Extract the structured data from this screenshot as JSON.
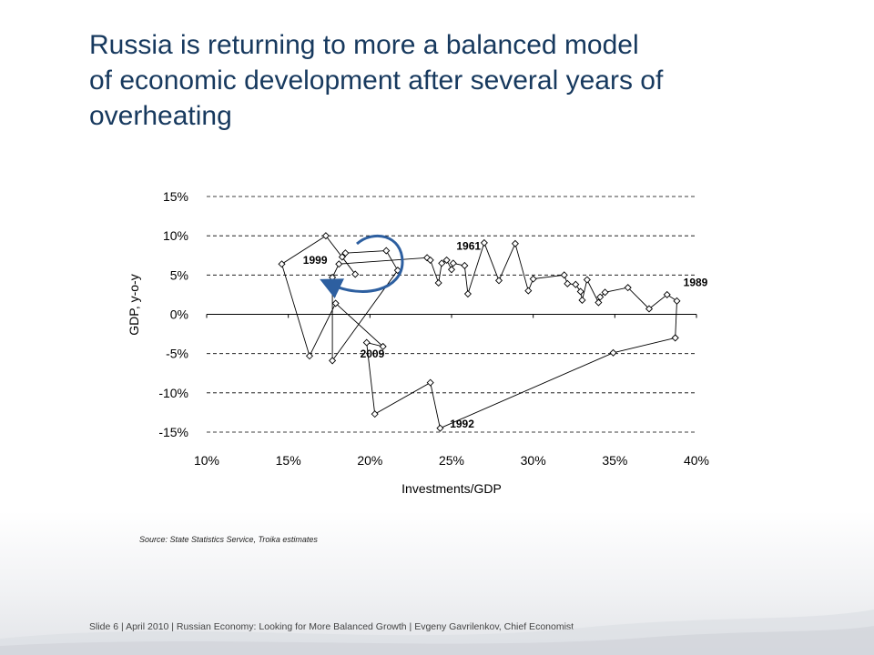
{
  "slide": {
    "title_lines": [
      "Russia is returning to more a balanced model",
      "of economic development after several years of",
      "overheating"
    ],
    "source": "Source: State Statistics Service, Troika estimates",
    "footer": "Slide 6  | April 2010 | Russian Economy: Looking for More Balanced Growth | Evgeny Gavrilenkov, Chief Economist"
  },
  "chart_data": {
    "type": "scatter",
    "xlabel": "Investments/GDP",
    "ylabel": "GDP, y-o-y",
    "xlim": [
      10,
      40
    ],
    "ylim": [
      -15,
      15
    ],
    "x_ticks": [
      "10%",
      "15%",
      "20%",
      "25%",
      "30%",
      "35%",
      "40%"
    ],
    "y_ticks": [
      "15%",
      "10%",
      "5%",
      "0%",
      "-5%",
      "-10%",
      "-15%"
    ],
    "grid": "horizontal-dashed",
    "line_color": "#000000",
    "arrow_color": "#2d5fa0",
    "series": [
      {
        "points": [
          [
            38.7,
            -3.0
          ],
          [
            34.9,
            -4.9
          ],
          [
            24.3,
            -14.5
          ],
          [
            23.7,
            -8.7
          ],
          [
            20.3,
            -12.7
          ],
          [
            19.8,
            -3.6
          ],
          [
            20.8,
            -4.1
          ],
          [
            17.9,
            1.4
          ],
          [
            16.3,
            -5.3
          ],
          [
            14.6,
            6.4
          ],
          [
            17.3,
            10.0
          ],
          [
            19.1,
            5.1
          ],
          [
            18.3,
            7.3
          ],
          [
            18.5,
            7.8
          ],
          [
            21.0,
            8.1
          ],
          [
            21.7,
            5.6
          ],
          [
            17.7,
            -5.9
          ],
          [
            17.7,
            4.7
          ],
          [
            18.1,
            6.4
          ],
          [
            23.5,
            7.2
          ],
          [
            23.7,
            6.9
          ],
          [
            24.2,
            4.0
          ],
          [
            24.4,
            6.5
          ],
          [
            24.7,
            6.9
          ],
          [
            25.0,
            5.7
          ],
          [
            25.1,
            6.5
          ],
          [
            25.8,
            6.2
          ],
          [
            26.0,
            2.6
          ],
          [
            27.0,
            9.1
          ],
          [
            27.9,
            4.3
          ],
          [
            28.9,
            9.0
          ],
          [
            29.7,
            3.0
          ],
          [
            30.0,
            4.5
          ],
          [
            31.9,
            5.0
          ],
          [
            32.1,
            3.9
          ],
          [
            32.6,
            3.8
          ],
          [
            32.9,
            2.9
          ],
          [
            33.0,
            1.8
          ],
          [
            33.3,
            4.4
          ],
          [
            34.0,
            1.5
          ],
          [
            34.1,
            2.2
          ],
          [
            34.4,
            2.8
          ],
          [
            35.8,
            3.4
          ],
          [
            37.1,
            0.7
          ],
          [
            38.2,
            2.5
          ],
          [
            38.8,
            1.7
          ],
          [
            38.7,
            -3.0
          ]
        ]
      }
    ],
    "annotations": [
      {
        "text": "1999",
        "x": 15.9,
        "y": 6.4
      },
      {
        "text": "1961",
        "x": 25.3,
        "y": 8.2
      },
      {
        "text": "2009",
        "x": 19.4,
        "y": -5.5
      },
      {
        "text": "1992",
        "x": 24.9,
        "y": -14.4
      },
      {
        "text": "1989",
        "x": 39.2,
        "y": 3.6
      }
    ]
  }
}
